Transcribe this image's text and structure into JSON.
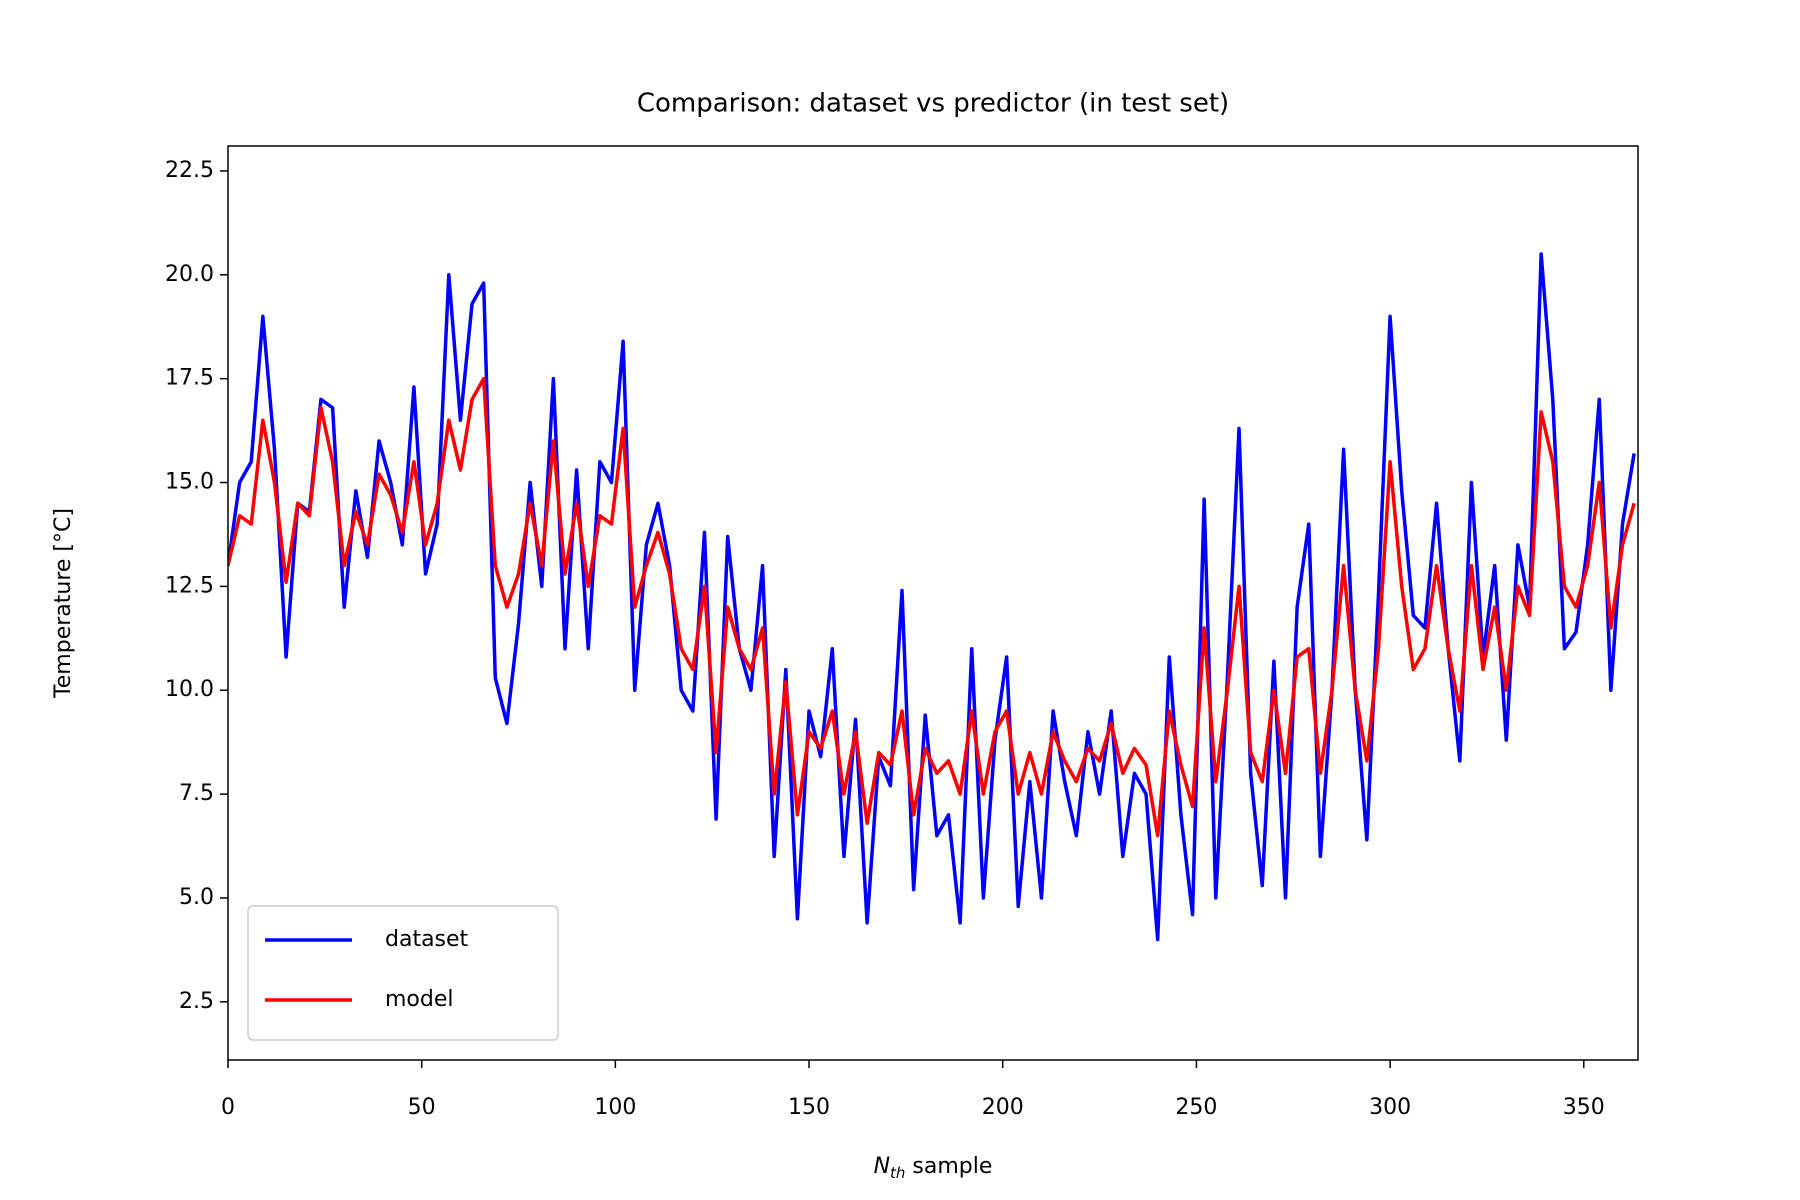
{
  "chart_data": {
    "type": "line",
    "title": "Comparison: dataset vs predictor (in test set)",
    "xlabel": [
      "N",
      "th",
      "sample"
    ],
    "ylabel": "Temperature [°C]",
    "x": [
      0,
      3,
      6,
      9,
      12,
      15,
      18,
      21,
      24,
      27,
      30,
      33,
      36,
      39,
      42,
      45,
      48,
      51,
      54,
      57,
      60,
      63,
      66,
      69,
      72,
      75,
      78,
      81,
      84,
      87,
      90,
      93,
      96,
      99,
      102,
      105,
      108,
      111,
      114,
      117,
      120,
      123,
      126,
      129,
      132,
      135,
      138,
      141,
      144,
      147,
      150,
      153,
      156,
      159,
      162,
      165,
      168,
      171,
      174,
      177,
      180,
      183,
      186,
      189,
      192,
      195,
      198,
      201,
      204,
      207,
      210,
      213,
      216,
      219,
      222,
      225,
      228,
      231,
      234,
      237,
      240,
      243,
      246,
      249,
      252,
      255,
      258,
      261,
      264,
      267,
      270,
      273,
      276,
      279,
      282,
      285,
      288,
      291,
      294,
      297,
      300,
      303,
      306,
      309,
      312,
      315,
      318,
      321,
      324,
      327,
      330,
      333,
      336,
      339,
      342,
      345,
      348,
      351,
      354,
      357,
      360,
      363
    ],
    "series": [
      {
        "name": "dataset",
        "color": "#0000ff",
        "values": [
          13.0,
          15.0,
          15.5,
          19.0,
          15.8,
          10.8,
          14.5,
          14.3,
          17.0,
          16.8,
          12.0,
          14.8,
          13.2,
          16.0,
          15.0,
          13.5,
          17.3,
          12.8,
          14.0,
          20.0,
          16.5,
          19.3,
          19.8,
          10.3,
          9.2,
          11.6,
          15.0,
          12.5,
          17.5,
          11.0,
          15.3,
          11.0,
          15.5,
          15.0,
          18.4,
          10.0,
          13.5,
          14.5,
          13.0,
          10.0,
          9.5,
          13.8,
          6.9,
          13.7,
          11.0,
          10.0,
          13.0,
          6.0,
          10.5,
          4.5,
          9.5,
          8.4,
          11.0,
          6.0,
          9.3,
          4.4,
          8.4,
          7.7,
          12.4,
          5.2,
          9.4,
          6.5,
          7.0,
          4.4,
          11.0,
          5.0,
          8.8,
          10.8,
          4.8,
          7.8,
          5.0,
          9.5,
          7.8,
          6.5,
          9.0,
          7.5,
          9.5,
          6.0,
          8.0,
          7.5,
          4.0,
          10.8,
          7.0,
          4.6,
          14.6,
          5.0,
          10.3,
          16.3,
          8.0,
          5.3,
          10.7,
          5.0,
          12.0,
          14.0,
          6.0,
          10.0,
          15.8,
          10.0,
          6.4,
          12.3,
          19.0,
          14.8,
          11.8,
          11.5,
          14.5,
          11.0,
          8.3,
          15.0,
          10.8,
          13.0,
          8.8,
          13.5,
          12.0,
          20.5,
          17.0,
          11.0,
          11.4,
          13.5,
          17.0,
          10.0,
          14.0,
          15.7
        ]
      },
      {
        "name": "model",
        "color": "#ff0000",
        "values": [
          13.0,
          14.2,
          14.0,
          16.5,
          15.0,
          12.6,
          14.5,
          14.2,
          16.8,
          15.5,
          13.0,
          14.3,
          13.5,
          15.2,
          14.7,
          13.8,
          15.5,
          13.5,
          14.5,
          16.5,
          15.3,
          17.0,
          17.5,
          13.0,
          12.0,
          12.8,
          14.5,
          13.0,
          16.0,
          12.8,
          14.5,
          12.5,
          14.2,
          14.0,
          16.3,
          12.0,
          13.0,
          13.8,
          12.8,
          11.0,
          10.5,
          12.5,
          8.5,
          12.0,
          11.0,
          10.5,
          11.5,
          7.5,
          10.2,
          7.0,
          9.0,
          8.6,
          9.5,
          7.5,
          9.0,
          6.8,
          8.5,
          8.2,
          9.5,
          7.0,
          8.6,
          8.0,
          8.3,
          7.5,
          9.5,
          7.5,
          9.0,
          9.5,
          7.5,
          8.5,
          7.5,
          9.0,
          8.3,
          7.8,
          8.6,
          8.3,
          9.2,
          8.0,
          8.6,
          8.2,
          6.5,
          9.5,
          8.2,
          7.2,
          11.5,
          7.8,
          10.0,
          12.5,
          8.5,
          7.8,
          10.0,
          8.0,
          10.8,
          11.0,
          8.0,
          10.0,
          13.0,
          10.0,
          8.3,
          11.0,
          15.5,
          12.5,
          10.5,
          11.0,
          13.0,
          11.0,
          9.5,
          13.0,
          10.5,
          12.0,
          10.0,
          12.5,
          11.8,
          16.7,
          15.5,
          12.5,
          12.0,
          13.0,
          15.0,
          11.5,
          13.5,
          14.5
        ]
      }
    ],
    "xlim": [
      0,
      364
    ],
    "ylim": [
      1.1,
      23.1
    ],
    "xticks": [
      0,
      50,
      100,
      150,
      200,
      250,
      300,
      350
    ],
    "yticks": [
      2.5,
      {
        "value": 5,
        "label": "5.0"
      },
      7.5,
      {
        "value": 10,
        "label": "10.0"
      },
      12.5,
      {
        "value": 15,
        "label": "15.0"
      },
      17.5,
      {
        "value": 20,
        "label": "20.0"
      },
      22.5
    ],
    "grid": false,
    "legend": "lower left"
  }
}
